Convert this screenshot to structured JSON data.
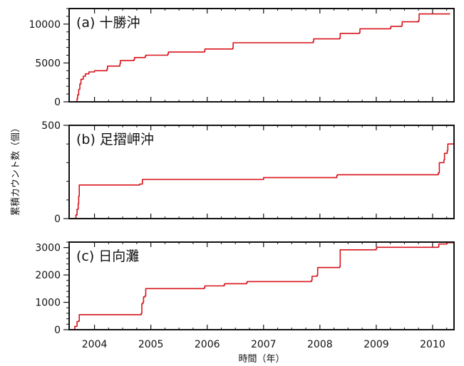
{
  "figure": {
    "ylabel": "累積カウント数（個）",
    "xlabel": "時間（年）",
    "x_ticks": [
      2004,
      2005,
      2006,
      2007,
      2008,
      2009,
      2010
    ]
  },
  "colors": {
    "series": "#d7141b",
    "frame": "#111111",
    "text": "#111111"
  },
  "chart_data": [
    {
      "type": "line",
      "title": "(a)  十勝沖",
      "xlim": [
        2003.55,
        2010.38
      ],
      "ylim": [
        0,
        12000
      ],
      "y_ticks": [
        0,
        5000,
        10000
      ],
      "x": [
        2003.68,
        2003.69,
        2003.7,
        2003.72,
        2003.74,
        2003.76,
        2003.8,
        2003.84,
        2003.9,
        2004.0,
        2004.22,
        2004.23,
        2004.45,
        2004.46,
        2004.7,
        2004.71,
        2004.9,
        2004.91,
        2005.3,
        2005.31,
        2005.95,
        2005.96,
        2006.45,
        2006.46,
        2007.88,
        2007.89,
        2008.35,
        2008.36,
        2008.7,
        2008.71,
        2009.25,
        2009.26,
        2009.45,
        2009.46,
        2009.75,
        2009.76,
        2010.3
      ],
      "y": [
        0,
        400,
        900,
        1600,
        2300,
        2900,
        3300,
        3600,
        3850,
        4000,
        4200,
        4600,
        4900,
        5300,
        5450,
        5700,
        5850,
        6000,
        6150,
        6400,
        6500,
        6800,
        6900,
        7600,
        7750,
        8100,
        8200,
        8800,
        8900,
        9400,
        9500,
        9700,
        9800,
        10300,
        10450,
        11300,
        11400
      ]
    },
    {
      "type": "line",
      "title": "(b)  足摺岬沖",
      "xlim": [
        2003.55,
        2010.38
      ],
      "ylim": [
        0,
        500
      ],
      "y_ticks": [
        0,
        500
      ],
      "x": [
        2003.66,
        2003.67,
        2003.69,
        2003.71,
        2003.72,
        2003.73,
        2004.8,
        2004.85,
        2007.0,
        2008.3,
        2008.31,
        2010.1,
        2010.12,
        2010.2,
        2010.21,
        2010.26,
        2010.27,
        2010.38
      ],
      "y": [
        0,
        20,
        50,
        80,
        120,
        180,
        185,
        210,
        220,
        230,
        235,
        245,
        300,
        315,
        350,
        365,
        400,
        405
      ]
    },
    {
      "type": "line",
      "title": "(c)  日向灘",
      "xlim": [
        2003.55,
        2010.38
      ],
      "ylim": [
        0,
        3200
      ],
      "y_ticks": [
        0,
        1000,
        2000,
        3000
      ],
      "x": [
        2003.64,
        2003.65,
        2003.68,
        2003.69,
        2003.72,
        2003.73,
        2004.83,
        2004.84,
        2004.86,
        2004.87,
        2004.9,
        2004.91,
        2005.95,
        2005.96,
        2006.3,
        2006.31,
        2006.7,
        2006.71,
        2007.85,
        2007.86,
        2007.95,
        2007.96,
        2008.35,
        2008.36,
        2009.0,
        2009.01,
        2010.1,
        2010.11,
        2010.25,
        2010.26,
        2010.38
      ],
      "y": [
        0,
        120,
        130,
        300,
        320,
        550,
        600,
        950,
        1000,
        1200,
        1250,
        1500,
        1550,
        1600,
        1640,
        1680,
        1720,
        1760,
        1800,
        1950,
        2000,
        2270,
        2300,
        2920,
        2980,
        3010,
        3030,
        3130,
        3150,
        3180,
        3200
      ]
    }
  ]
}
